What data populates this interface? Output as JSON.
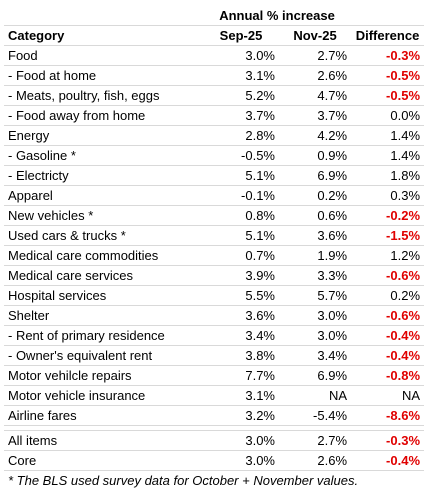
{
  "header": {
    "group_label": "Annual % increase",
    "col_category": "Category",
    "col_a": "Sep-25",
    "col_b": "Nov-25",
    "col_diff": "Difference"
  },
  "rows": [
    {
      "category": "Food",
      "a": "3.0%",
      "b": "2.7%",
      "diff": "-0.3%",
      "neg": true
    },
    {
      "category": "- Food at home",
      "a": "3.1%",
      "b": "2.6%",
      "diff": "-0.5%",
      "neg": true
    },
    {
      "category": "- Meats, poultry, fish, eggs",
      "a": "5.2%",
      "b": "4.7%",
      "diff": "-0.5%",
      "neg": true
    },
    {
      "category": "- Food away from home",
      "a": "3.7%",
      "b": "3.7%",
      "diff": "0.0%",
      "neg": false
    },
    {
      "category": "Energy",
      "a": "2.8%",
      "b": "4.2%",
      "diff": "1.4%",
      "neg": false
    },
    {
      "category": "- Gasoline *",
      "a": "-0.5%",
      "b": "0.9%",
      "diff": "1.4%",
      "neg": false
    },
    {
      "category": "- Electricty",
      "a": "5.1%",
      "b": "6.9%",
      "diff": "1.8%",
      "neg": false
    },
    {
      "category": "Apparel",
      "a": "-0.1%",
      "b": "0.2%",
      "diff": "0.3%",
      "neg": false
    },
    {
      "category": "New vehicles *",
      "a": "0.8%",
      "b": "0.6%",
      "diff": "-0.2%",
      "neg": true
    },
    {
      "category": "Used cars & trucks *",
      "a": "5.1%",
      "b": "3.6%",
      "diff": "-1.5%",
      "neg": true
    },
    {
      "category": "Medical care commodities",
      "a": "0.7%",
      "b": "1.9%",
      "diff": "1.2%",
      "neg": false
    },
    {
      "category": "Medical care services",
      "a": "3.9%",
      "b": "3.3%",
      "diff": "-0.6%",
      "neg": true
    },
    {
      "category": "Hospital services",
      "a": "5.5%",
      "b": "5.7%",
      "diff": "0.2%",
      "neg": false
    },
    {
      "category": "Shelter",
      "a": "3.6%",
      "b": "3.0%",
      "diff": "-0.6%",
      "neg": true
    },
    {
      "category": "- Rent of primary residence",
      "a": "3.4%",
      "b": "3.0%",
      "diff": "-0.4%",
      "neg": true
    },
    {
      "category": "- Owner's equivalent rent",
      "a": "3.8%",
      "b": "3.4%",
      "diff": "-0.4%",
      "neg": true
    },
    {
      "category": "Motor vehilcle repairs",
      "a": "7.7%",
      "b": "6.9%",
      "diff": "-0.8%",
      "neg": true
    },
    {
      "category": "Motor vehicle insurance",
      "a": "3.1%",
      "b": "NA",
      "diff": "NA",
      "neg": false
    },
    {
      "category": "Airline fares",
      "a": "3.2%",
      "b": "-5.4%",
      "diff": "-8.6%",
      "neg": true
    }
  ],
  "totals": [
    {
      "category": "All items",
      "a": "3.0%",
      "b": "2.7%",
      "diff": "-0.3%",
      "neg": true
    },
    {
      "category": "Core",
      "a": "3.0%",
      "b": "2.6%",
      "diff": "-0.4%",
      "neg": true
    }
  ],
  "footnote": "* The BLS used survey data for October + November values.",
  "colors": {
    "negative": "#e00000"
  }
}
